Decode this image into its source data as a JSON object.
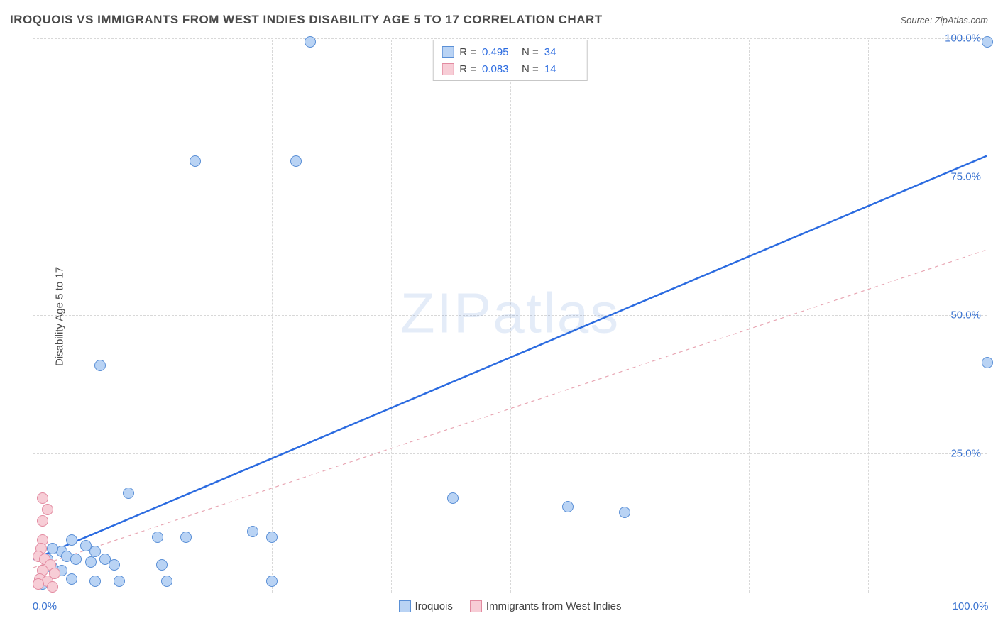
{
  "header": {
    "title": "IROQUOIS VS IMMIGRANTS FROM WEST INDIES DISABILITY AGE 5 TO 17 CORRELATION CHART",
    "source": "Source: ZipAtlas.com"
  },
  "watermark": {
    "bold": "ZIP",
    "thin": "atlas"
  },
  "chart": {
    "type": "scatter",
    "ylabel": "Disability Age 5 to 17",
    "xlim": [
      0,
      100
    ],
    "ylim": [
      0,
      100
    ],
    "xticks": [
      0,
      100
    ],
    "yticks": [
      25,
      50,
      75,
      100
    ],
    "xtick_labels": [
      "0.0%",
      "100.0%"
    ],
    "ytick_labels": [
      "25.0%",
      "50.0%",
      "75.0%",
      "100.0%"
    ],
    "grid_positions_x": [
      0,
      12.5,
      25,
      37.5,
      50,
      62.5,
      75,
      87.5
    ],
    "grid_positions_y": [
      25,
      50,
      75,
      100
    ],
    "grid_color": "#d8d8d8",
    "axis_color": "#888888",
    "background_color": "#ffffff",
    "marker_radius": 8,
    "marker_border_width": 1.2,
    "series": [
      {
        "name": "Iroquois",
        "fill": "#b9d3f4",
        "stroke": "#5a8fd6",
        "R": "0.495",
        "N": "34",
        "trend": {
          "x1": 0,
          "y1": 6,
          "x2": 100,
          "y2": 79,
          "color": "#2b6be0",
          "width": 2.5,
          "dash": "none"
        },
        "points": [
          [
            29,
            99.5
          ],
          [
            100,
            99.5
          ],
          [
            17,
            78
          ],
          [
            27.5,
            78
          ],
          [
            100,
            41.5
          ],
          [
            7,
            41
          ],
          [
            44,
            17
          ],
          [
            56,
            15.5
          ],
          [
            62,
            14.5
          ],
          [
            23,
            11
          ],
          [
            25,
            10
          ],
          [
            16,
            10
          ],
          [
            10,
            18
          ],
          [
            13,
            10
          ],
          [
            4,
            9.5
          ],
          [
            5.5,
            8.5
          ],
          [
            6.5,
            7.5
          ],
          [
            3,
            7.5
          ],
          [
            3.5,
            6.5
          ],
          [
            2,
            8
          ],
          [
            4.5,
            6
          ],
          [
            6,
            5.5
          ],
          [
            7.5,
            6
          ],
          [
            8.5,
            5
          ],
          [
            2,
            4.5
          ],
          [
            3,
            4
          ],
          [
            1.5,
            6
          ],
          [
            4,
            2.5
          ],
          [
            6.5,
            2
          ],
          [
            9,
            2
          ],
          [
            14,
            2
          ],
          [
            25,
            2
          ],
          [
            13.5,
            5
          ],
          [
            1,
            1.5
          ]
        ]
      },
      {
        "name": "Immigrants from West Indies",
        "fill": "#f7cdd6",
        "stroke": "#e28aa0",
        "R": "0.083",
        "N": "14",
        "trend": {
          "x1": 0,
          "y1": 4.5,
          "x2": 100,
          "y2": 62,
          "color": "#e8a6b3",
          "width": 1.2,
          "dash": "5,5"
        },
        "points": [
          [
            1,
            17
          ],
          [
            1.5,
            15
          ],
          [
            1,
            13
          ],
          [
            1,
            9.5
          ],
          [
            0.8,
            8
          ],
          [
            0.5,
            6.5
          ],
          [
            1.2,
            6
          ],
          [
            1.8,
            5
          ],
          [
            2.2,
            3.5
          ],
          [
            1,
            4
          ],
          [
            0.7,
            2.5
          ],
          [
            1.5,
            2
          ],
          [
            2,
            1
          ],
          [
            0.5,
            1.5
          ]
        ]
      }
    ],
    "legend_top": {
      "rows": [
        {
          "swatch_fill": "#b9d3f4",
          "swatch_stroke": "#5a8fd6",
          "r_label": "R =",
          "r_val": "0.495",
          "n_label": "N =",
          "n_val": "34"
        },
        {
          "swatch_fill": "#f7cdd6",
          "swatch_stroke": "#e28aa0",
          "r_label": "R =",
          "r_val": "0.083",
          "n_label": "N =",
          "n_val": "14"
        }
      ]
    },
    "legend_bottom": [
      {
        "swatch_fill": "#b9d3f4",
        "swatch_stroke": "#5a8fd6",
        "label": "Iroquois"
      },
      {
        "swatch_fill": "#f7cdd6",
        "swatch_stroke": "#e28aa0",
        "label": "Immigrants from West Indies"
      }
    ]
  }
}
